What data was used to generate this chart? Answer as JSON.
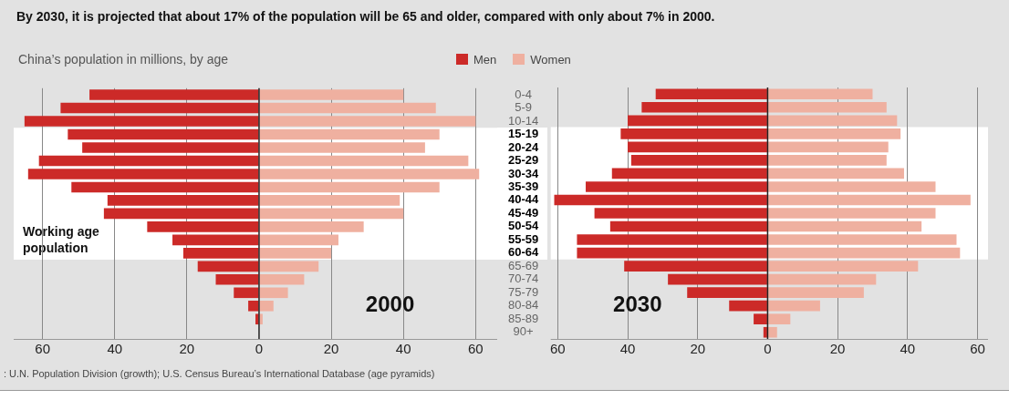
{
  "chart_data": [
    {
      "type": "bar",
      "title": "By 2030, it is projected that about 17% of the population will be 65 and older, compared with only about 7% in 2000.",
      "subtitle": "China’s population in millions, by age",
      "orientation": "horizontal",
      "stacked": true,
      "legend": "top",
      "grid": "x",
      "categories": [
        "0-4",
        "5-9",
        "10-14",
        "15-19",
        "20-24",
        "25-29",
        "30-34",
        "35-39",
        "40-44",
        "45-49",
        "50-54",
        "55-59",
        "60-64",
        "65-69",
        "70-74",
        "75-79",
        "80-84",
        "85-89",
        "90+"
      ],
      "series": [
        {
          "name": "Men",
          "color": "#cc2a28",
          "values": [
            -47,
            -55,
            -65,
            -53,
            -49,
            -61,
            -64,
            -52,
            -42,
            -43,
            -31,
            -24,
            -21,
            -17,
            -12,
            -7,
            -3,
            -1,
            null
          ]
        },
        {
          "name": "Women",
          "color": "#efb0a0",
          "values": [
            40,
            49,
            60,
            50,
            46,
            58,
            61,
            50,
            39,
            40,
            29,
            22,
            20,
            16.5,
            12.5,
            8,
            4,
            1,
            null
          ]
        }
      ],
      "xlim": [
        -68,
        66
      ],
      "xticks": [
        {
          "value": -60,
          "label": "60"
        },
        {
          "value": -40,
          "label": "40"
        },
        {
          "value": -20,
          "label": "20"
        },
        0,
        20,
        40,
        60
      ],
      "bands": [
        {
          "axis": "y",
          "from": "15-19",
          "to": "60-64",
          "label": "Working age population",
          "color": "#ffffff"
        }
      ],
      "annotations": [
        "2000",
        ": U.N. Population Division (growth); U.S. Census Bureau’s International Database (age pyramids)"
      ]
    },
    {
      "type": "bar",
      "orientation": "horizontal",
      "stacked": true,
      "grid": "x",
      "tick_labels": "x",
      "categories": [
        "0-4",
        "5-9",
        "10-14",
        "15-19",
        "20-24",
        "25-29",
        "30-34",
        "35-39",
        "40-44",
        "45-49",
        "50-54",
        "55-59",
        "60-64",
        "65-69",
        "70-74",
        "75-79",
        "80-84",
        "85-89",
        "90+"
      ],
      "series": [
        {
          "color": "#cc2a28",
          "values": [
            -32,
            -36,
            -40,
            -42,
            -40,
            -39,
            -44.5,
            -52,
            -61,
            -49.5,
            -45,
            -54.5,
            -54.5,
            -41,
            -28.5,
            -23,
            -11,
            -4,
            -1.2
          ]
        },
        {
          "color": "#efb0a0",
          "values": [
            30,
            34,
            37,
            38,
            34.5,
            34,
            39,
            48,
            58,
            48,
            44,
            54,
            55,
            43,
            31,
            27.5,
            15,
            6.5,
            2.7
          ]
        }
      ],
      "xlim": [
        -62,
        63
      ],
      "xticks": [
        {
          "value": -60,
          "label": "60"
        },
        {
          "value": -40,
          "label": "40"
        },
        {
          "value": -20,
          "label": "20"
        },
        0,
        20,
        40,
        60
      ],
      "bands": [
        {
          "axis": "y",
          "from": "15-19",
          "to": "60-64",
          "color": "#ffffff"
        }
      ],
      "annotations": [
        "2030"
      ]
    }
  ]
}
